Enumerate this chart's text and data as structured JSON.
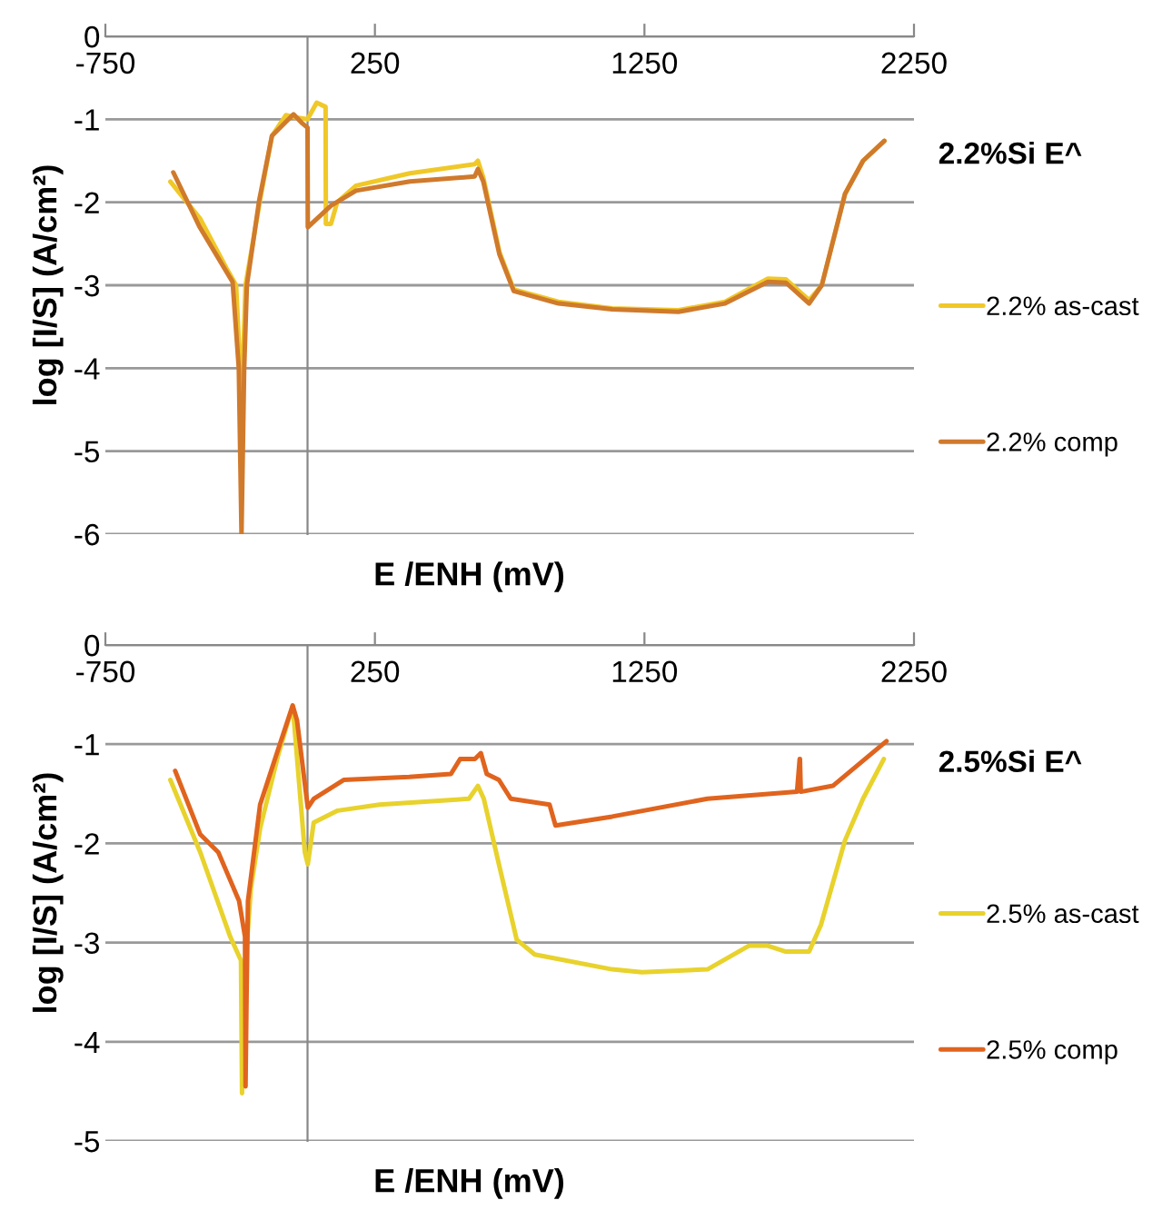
{
  "chart_data": [
    {
      "type": "line",
      "title": "2.2%Si E^",
      "xlabel": "E /ENH (mV)",
      "ylabel": "log [I/S] (A/cm²)",
      "xlim": [
        -750,
        2250
      ],
      "ylim": [
        -6,
        0
      ],
      "xticks": [
        -750,
        250,
        1250,
        2250
      ],
      "yticks": [
        0,
        -1,
        -2,
        -3,
        -4,
        -5,
        -6
      ],
      "grid": "y",
      "legend": "right",
      "series": [
        {
          "name": "2.2% as-cast",
          "color": "#f0c828",
          "x": [
            -509,
            -398,
            -300,
            -265,
            -250,
            -245,
            -240,
            -230,
            -176,
            -132,
            -80,
            -40,
            0,
            34,
            67,
            68,
            87,
            110,
            180,
            380,
            620,
            632,
            652,
            712,
            765,
            931,
            1130,
            1376,
            1549,
            1708,
            1775,
            1861,
            1908,
            1994,
            2061,
            2140
          ],
          "values": [
            -1.75,
            -2.2,
            -2.8,
            -3.0,
            -4.0,
            -4.82,
            -4.0,
            -3.0,
            -1.97,
            -1.2,
            -0.95,
            -0.98,
            -1.0,
            -0.8,
            -0.85,
            -2.26,
            -2.26,
            -2.0,
            -1.8,
            -1.65,
            -1.54,
            -1.5,
            -1.7,
            -2.6,
            -3.05,
            -3.2,
            -3.28,
            -3.3,
            -3.2,
            -2.92,
            -2.93,
            -3.18,
            -3.0,
            -1.9,
            -1.5,
            -1.26
          ]
        },
        {
          "name": "2.2% comp",
          "color": "#d07a2c",
          "x": [
            -498,
            -400,
            -278,
            -255,
            -245,
            -235,
            -225,
            -179,
            -132,
            -52,
            -19,
            0,
            1,
            87,
            180,
            380,
            620,
            632,
            652,
            712,
            765,
            931,
            1130,
            1376,
            1549,
            1708,
            1775,
            1861,
            1908,
            1994,
            2061,
            2140
          ],
          "values": [
            -1.64,
            -2.3,
            -2.96,
            -4.0,
            -6.0,
            -4.0,
            -3.0,
            -1.97,
            -1.2,
            -0.94,
            -1.05,
            -1.1,
            -2.3,
            -2.04,
            -1.86,
            -1.75,
            -1.69,
            -1.6,
            -1.75,
            -2.63,
            -3.07,
            -3.22,
            -3.29,
            -3.32,
            -3.22,
            -2.96,
            -2.97,
            -3.22,
            -3.0,
            -1.9,
            -1.5,
            -1.26
          ]
        }
      ]
    },
    {
      "type": "line",
      "title": "2.5%Si E^",
      "xlabel": "E /ENH (mV)",
      "ylabel": "log [I/S] (A/cm²)",
      "xlim": [
        -750,
        2250
      ],
      "ylim": [
        -5,
        0
      ],
      "xticks": [
        -750,
        250,
        1250,
        2250
      ],
      "yticks": [
        0,
        -1,
        -2,
        -3,
        -4,
        -5
      ],
      "grid": "y",
      "legend": "right",
      "series": [
        {
          "name": "2.5% as-cast",
          "color": "#e8d22c",
          "x": [
            -509,
            -398,
            -287,
            -247,
            -243,
            -238,
            -210,
            -176,
            -110,
            -55,
            -10,
            1,
            23,
            112,
            267,
            599,
            632,
            654,
            710,
            776,
            843,
            1130,
            1241,
            1484,
            1639,
            1705,
            1772,
            1861,
            1905,
            1994,
            2061,
            2138
          ],
          "values": [
            -1.36,
            -2.09,
            -2.94,
            -3.18,
            -4.52,
            -3.5,
            -2.45,
            -1.85,
            -1.12,
            -0.61,
            -2.09,
            -2.21,
            -1.79,
            -1.67,
            -1.61,
            -1.55,
            -1.42,
            -1.55,
            -2.21,
            -2.97,
            -3.12,
            -3.27,
            -3.3,
            -3.27,
            -3.03,
            -3.03,
            -3.09,
            -3.09,
            -2.82,
            -1.97,
            -1.55,
            -1.15
          ]
        },
        {
          "name": "2.5% comp",
          "color": "#e0641e",
          "x": [
            -491,
            -398,
            -331,
            -254,
            -232,
            -230,
            -226,
            -221,
            -176,
            -110,
            -55,
            -39,
            1,
            23,
            134,
            377,
            532,
            566,
            621,
            643,
            665,
            710,
            754,
            898,
            920,
            1130,
            1484,
            1816,
            1826,
            1827,
            1830,
            1949,
            2148
          ],
          "values": [
            -1.27,
            -1.91,
            -2.09,
            -2.58,
            -2.94,
            -4.45,
            -3.5,
            -2.58,
            -1.61,
            -1.06,
            -0.61,
            -0.76,
            -1.64,
            -1.55,
            -1.36,
            -1.33,
            -1.3,
            -1.15,
            -1.15,
            -1.09,
            -1.3,
            -1.36,
            -1.55,
            -1.61,
            -1.82,
            -1.73,
            -1.55,
            -1.48,
            -1.15,
            -1.15,
            -1.48,
            -1.42,
            -0.97
          ]
        }
      ]
    }
  ]
}
